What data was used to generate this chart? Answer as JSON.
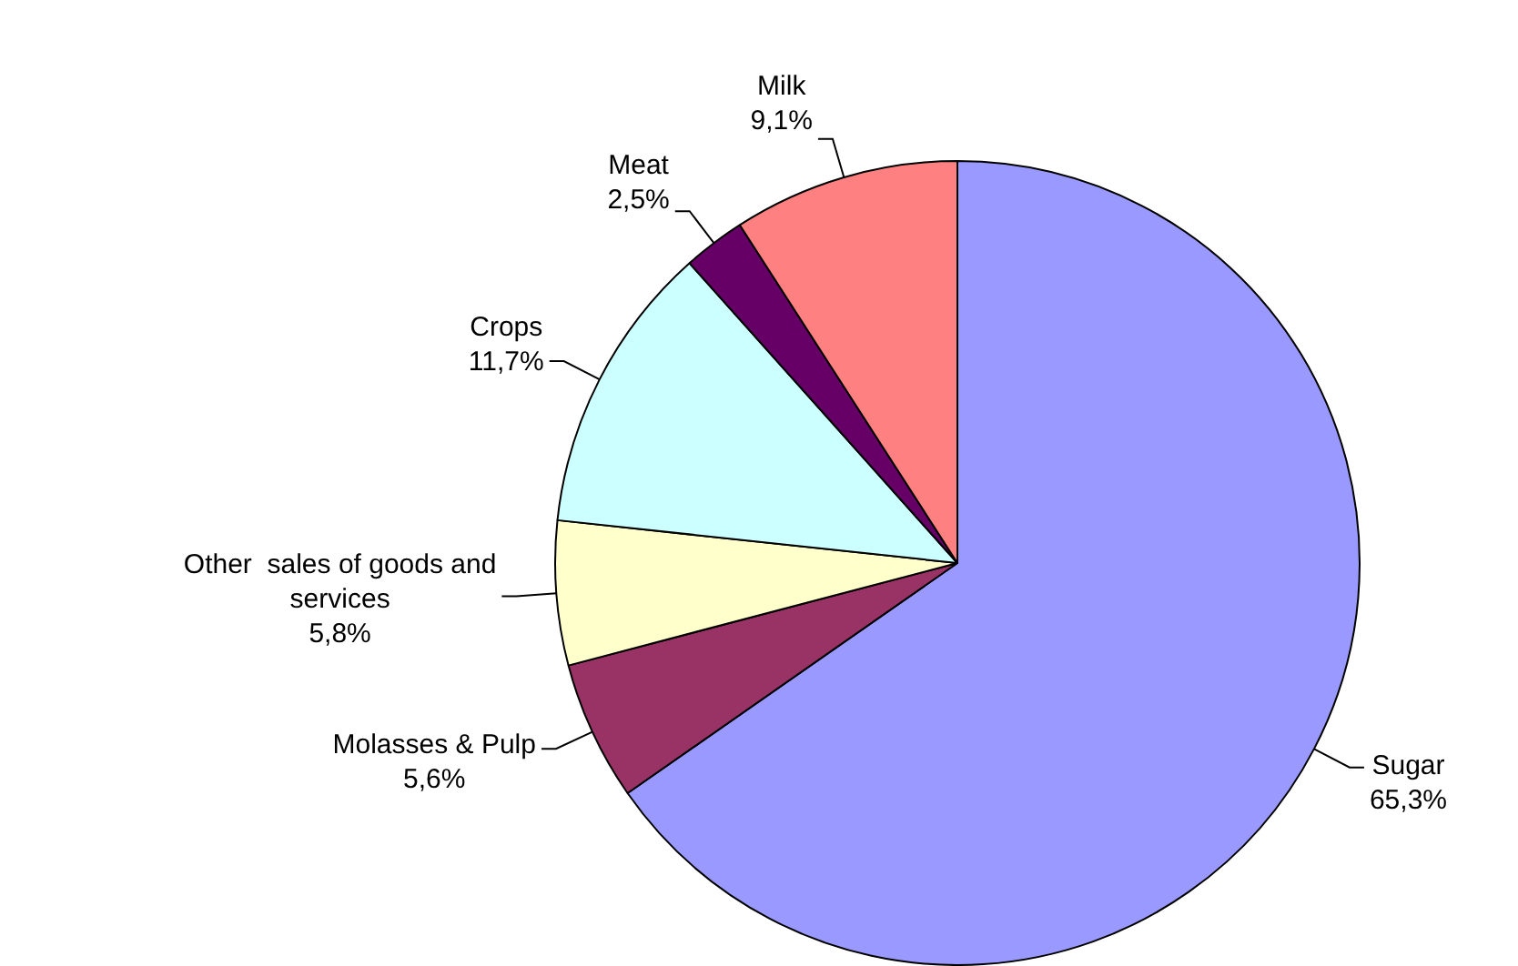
{
  "chart_data": {
    "type": "pie",
    "categories": [
      "Sugar",
      "Molasses & Pulp",
      "Other  sales of goods and services",
      "Crops",
      "Meat",
      "Milk"
    ],
    "values": [
      65.3,
      5.6,
      5.8,
      11.7,
      2.5,
      9.1
    ],
    "value_labels": [
      "65,3%",
      "5,6%",
      "5,8%",
      "11,7%",
      "2,5%",
      "9,1%"
    ],
    "colors": [
      "#9999ff",
      "#993366",
      "#ffffcc",
      "#ccffff",
      "#660066",
      "#ff8080"
    ],
    "legend": false
  }
}
